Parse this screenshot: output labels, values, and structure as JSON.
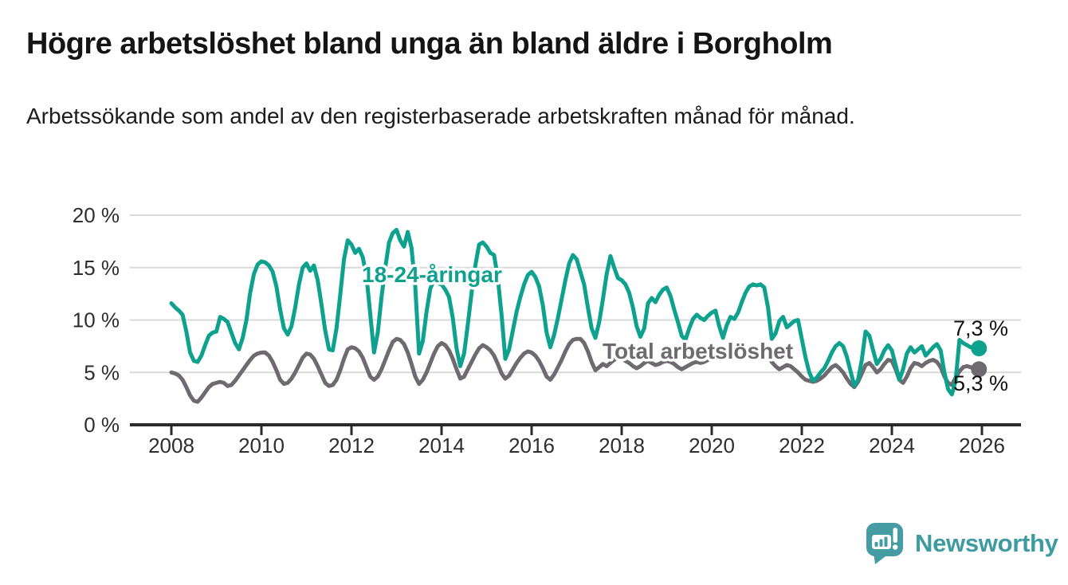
{
  "header": {
    "title": "Högre arbetslöshet bland unga än bland äldre i Borgholm",
    "subtitle": "Arbetssökande som andel av den registerbaserade arbetskraften månad för månad."
  },
  "chart_data": {
    "type": "line",
    "title": "Högre arbetslöshet bland unga än bland äldre i Borgholm",
    "xlabel": "",
    "ylabel": "Arbetssökande som andel av den registerbaserade arbetskraften",
    "x_unit": "month",
    "x_start": "2008-01",
    "x_end": "2025-12",
    "ylim": [
      0,
      20
    ],
    "grid": true,
    "legend": "inline-labels",
    "y_ticks": [
      {
        "label": "20 %",
        "value": 20
      },
      {
        "label": "15 %",
        "value": 15
      },
      {
        "label": "10 %",
        "value": 10
      },
      {
        "label": "5 %",
        "value": 5
      },
      {
        "label": "0 %",
        "value": 0
      }
    ],
    "x_ticks": [
      {
        "label": "2008",
        "year": 2008
      },
      {
        "label": "2010",
        "year": 2010
      },
      {
        "label": "2012",
        "year": 2012
      },
      {
        "label": "2014",
        "year": 2014
      },
      {
        "label": "2016",
        "year": 2016
      },
      {
        "label": "2018",
        "year": 2018
      },
      {
        "label": "2020",
        "year": 2020
      },
      {
        "label": "2022",
        "year": 2022
      },
      {
        "label": "2024",
        "year": 2024
      },
      {
        "label": "2026",
        "year": 2026
      }
    ],
    "series": [
      {
        "name": "18-24-åringar",
        "label": "18-24-åringar",
        "color": "#0ea18e",
        "end_label": "7,3 %",
        "end_value": 7.3,
        "values": [
          11.6,
          11.2,
          10.9,
          10.5,
          8.9,
          6.9,
          6.1,
          6.0,
          6.6,
          7.6,
          8.5,
          8.8,
          8.9,
          10.3,
          10.1,
          9.8,
          8.8,
          7.8,
          7.2,
          8.3,
          10.0,
          12.6,
          14.4,
          15.3,
          15.6,
          15.5,
          15.2,
          14.6,
          13.2,
          11.0,
          9.2,
          8.6,
          9.4,
          11.2,
          13.4,
          15.0,
          15.4,
          14.7,
          15.2,
          13.8,
          11.5,
          9.0,
          7.2,
          7.1,
          9.2,
          12.4,
          15.8,
          17.6,
          17.2,
          16.4,
          16.8,
          16.0,
          14.2,
          10.6,
          6.9,
          8.8,
          12.2,
          15.0,
          17.4,
          18.3,
          18.6,
          17.6,
          17.0,
          18.4,
          16.9,
          13.2,
          6.8,
          8.0,
          10.8,
          13.0,
          13.8,
          13.5,
          13.4,
          12.9,
          12.2,
          10.2,
          7.3,
          5.6,
          6.8,
          9.6,
          12.6,
          15.2,
          17.2,
          17.4,
          17.0,
          16.4,
          16.2,
          14.0,
          10.5,
          6.3,
          7.2,
          9.0,
          10.8,
          12.2,
          13.4,
          14.3,
          14.6,
          14.1,
          13.2,
          11.4,
          8.8,
          7.4,
          8.6,
          10.2,
          12.0,
          13.8,
          15.4,
          16.2,
          15.8,
          14.6,
          13.4,
          11.2,
          9.2,
          8.3,
          9.8,
          12.0,
          14.4,
          16.1,
          15.0,
          14.0,
          13.8,
          13.4,
          12.6,
          11.2,
          9.4,
          8.4,
          9.2,
          11.6,
          12.1,
          11.7,
          12.4,
          12.9,
          13.1,
          12.3,
          11.0,
          9.8,
          8.5,
          8.1,
          9.2,
          10.1,
          10.5,
          10.2,
          10.0,
          10.4,
          10.7,
          10.9,
          9.4,
          8.3,
          9.5,
          10.3,
          10.1,
          10.7,
          11.7,
          12.6,
          13.2,
          13.4,
          13.3,
          13.4,
          13.1,
          11.2,
          8.2,
          8.7,
          9.9,
          10.3,
          9.3,
          9.6,
          9.9,
          10.0,
          8.2,
          6.4,
          5.0,
          4.2,
          4.5,
          5.0,
          5.4,
          6.1,
          6.9,
          7.5,
          7.8,
          7.5,
          6.5,
          5.1,
          3.7,
          4.3,
          6.2,
          8.9,
          8.5,
          7.1,
          5.8,
          6.3,
          7.1,
          7.6,
          7.1,
          5.7,
          4.3,
          5.3,
          6.8,
          7.4,
          6.9,
          7.2,
          7.5,
          6.6,
          7.0,
          7.4,
          7.7,
          7.1,
          5.0,
          3.4,
          2.9,
          4.2,
          8.1,
          7.8,
          7.6,
          7.4,
          7.3,
          7.3
        ]
      },
      {
        "name": "Total arbetslöshet",
        "label": "Total arbetslöshet",
        "color": "#6e6a70",
        "end_label": "5,3 %",
        "end_value": 5.3,
        "values": [
          5.0,
          4.9,
          4.7,
          4.3,
          3.6,
          2.8,
          2.3,
          2.2,
          2.6,
          3.1,
          3.6,
          3.9,
          4.0,
          4.1,
          4.0,
          3.7,
          3.8,
          4.2,
          4.7,
          5.2,
          5.7,
          6.2,
          6.6,
          6.8,
          6.9,
          6.9,
          6.6,
          6.0,
          5.2,
          4.3,
          3.9,
          4.0,
          4.4,
          5.0,
          5.7,
          6.4,
          6.8,
          6.7,
          6.3,
          5.6,
          4.8,
          4.0,
          3.7,
          3.8,
          4.3,
          5.2,
          6.3,
          7.2,
          7.4,
          7.3,
          7.0,
          6.4,
          5.5,
          4.6,
          4.3,
          4.6,
          5.3,
          6.2,
          7.1,
          7.9,
          8.2,
          8.1,
          7.7,
          6.9,
          5.8,
          4.6,
          3.9,
          4.3,
          5.0,
          5.9,
          6.8,
          7.5,
          7.8,
          7.6,
          7.1,
          6.3,
          5.3,
          4.4,
          4.6,
          5.3,
          6.0,
          6.7,
          7.3,
          7.6,
          7.4,
          7.1,
          6.6,
          5.8,
          4.9,
          4.4,
          4.7,
          5.3,
          5.9,
          6.4,
          6.8,
          7.0,
          6.9,
          6.6,
          6.1,
          5.4,
          4.6,
          4.3,
          4.8,
          5.5,
          6.2,
          7.0,
          7.7,
          8.1,
          8.2,
          8.2,
          7.8,
          7.0,
          6.0,
          5.2,
          5.5,
          5.8,
          5.6,
          5.9,
          6.2,
          6.4,
          6.3,
          6.1,
          5.9,
          5.6,
          5.4,
          5.6,
          5.9,
          6.1,
          5.9,
          5.7,
          5.8,
          6.0,
          6.1,
          6.0,
          5.8,
          5.5,
          5.3,
          5.5,
          5.7,
          5.9,
          6.0,
          5.9,
          6.0,
          6.2,
          6.4,
          6.6,
          6.8,
          7.0,
          6.9,
          6.7,
          6.6,
          6.7,
          6.8,
          6.9,
          7.0,
          6.9,
          6.8,
          6.9,
          6.8,
          6.5,
          6.0,
          5.6,
          5.3,
          5.5,
          5.7,
          5.6,
          5.3,
          5.0,
          4.6,
          4.3,
          4.2,
          4.1,
          4.2,
          4.4,
          4.7,
          5.1,
          5.5,
          5.7,
          5.4,
          5.0,
          4.4,
          3.9,
          3.6,
          4.1,
          4.9,
          5.7,
          5.9,
          5.5,
          5.0,
          5.3,
          5.8,
          6.2,
          6.1,
          5.3,
          4.3,
          4.0,
          4.6,
          5.4,
          5.9,
          5.8,
          5.6,
          5.9,
          6.1,
          6.2,
          6.0,
          5.5,
          4.6,
          4.0,
          3.8,
          4.5,
          5.1,
          5.5,
          5.6,
          5.5,
          5.3,
          5.3
        ]
      }
    ],
    "colors": {
      "youth_line": "#0ea18e",
      "total_line": "#6e6a70",
      "grid": "#d9d9d9",
      "axis": "#2b2b2b",
      "annotation_text": "#111111"
    }
  },
  "footer": {
    "brand": "Newsworthy",
    "brand_color": "#3d9ba1"
  }
}
